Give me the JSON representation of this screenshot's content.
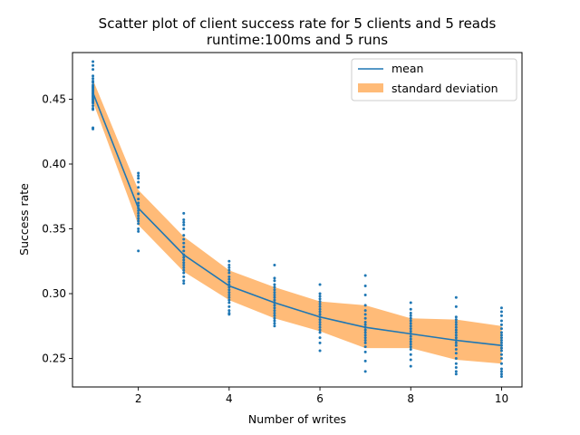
{
  "chart_data": {
    "type": "scatter",
    "title_line1": "Scatter plot of client success rate for 5 clients and 5 reads",
    "title_line2": "runtime:100ms and 5 runs",
    "xlabel": "Number of writes",
    "ylabel": "Success rate",
    "xlim": [
      0.55,
      10.45
    ],
    "ylim": [
      0.228,
      0.486
    ],
    "xticks": [
      2,
      4,
      6,
      8,
      10
    ],
    "yticks": [
      0.25,
      0.3,
      0.35,
      0.4,
      0.45
    ],
    "ytick_labels": [
      "0.25",
      "0.30",
      "0.35",
      "0.40",
      "0.45"
    ],
    "legend_placement": "top-right",
    "colors": {
      "mean": "#1f77b4",
      "std": "#ffbb78",
      "points": "#1f77b4"
    },
    "mean": {
      "name": "mean",
      "x": [
        1,
        2,
        3,
        4,
        5,
        6,
        7,
        8,
        9,
        10
      ],
      "y": [
        0.455,
        0.366,
        0.33,
        0.306,
        0.293,
        0.282,
        0.274,
        0.269,
        0.264,
        0.26
      ]
    },
    "std": {
      "name": "standard deviation",
      "lower": [
        0.448,
        0.353,
        0.317,
        0.295,
        0.281,
        0.271,
        0.258,
        0.258,
        0.249,
        0.246
      ],
      "upper": [
        0.465,
        0.38,
        0.344,
        0.318,
        0.305,
        0.294,
        0.291,
        0.281,
        0.28,
        0.275
      ]
    },
    "points": [
      {
        "x": 1,
        "y": [
          0.479,
          0.476,
          0.473,
          0.468,
          0.466,
          0.464,
          0.463,
          0.461,
          0.46,
          0.459,
          0.458,
          0.457,
          0.456,
          0.455,
          0.454,
          0.453,
          0.452,
          0.451,
          0.45,
          0.449,
          0.448,
          0.447,
          0.445,
          0.443,
          0.442,
          0.428,
          0.427
        ]
      },
      {
        "x": 2,
        "y": [
          0.393,
          0.391,
          0.389,
          0.386,
          0.382,
          0.377,
          0.373,
          0.37,
          0.368,
          0.366,
          0.364,
          0.362,
          0.36,
          0.358,
          0.356,
          0.354,
          0.35,
          0.348,
          0.333
        ]
      },
      {
        "x": 3,
        "y": [
          0.362,
          0.357,
          0.355,
          0.353,
          0.35,
          0.345,
          0.342,
          0.339,
          0.336,
          0.333,
          0.33,
          0.328,
          0.326,
          0.324,
          0.322,
          0.32,
          0.318,
          0.316,
          0.313,
          0.31,
          0.308
        ]
      },
      {
        "x": 4,
        "y": [
          0.325,
          0.322,
          0.32,
          0.318,
          0.316,
          0.313,
          0.311,
          0.309,
          0.307,
          0.305,
          0.303,
          0.301,
          0.299,
          0.297,
          0.295,
          0.293,
          0.29,
          0.287,
          0.285,
          0.284
        ]
      },
      {
        "x": 5,
        "y": [
          0.322,
          0.312,
          0.31,
          0.307,
          0.305,
          0.303,
          0.301,
          0.299,
          0.297,
          0.295,
          0.293,
          0.291,
          0.289,
          0.287,
          0.285,
          0.283,
          0.281,
          0.279,
          0.277,
          0.275
        ]
      },
      {
        "x": 6,
        "y": [
          0.307,
          0.3,
          0.298,
          0.296,
          0.294,
          0.292,
          0.29,
          0.288,
          0.286,
          0.284,
          0.282,
          0.28,
          0.278,
          0.276,
          0.274,
          0.272,
          0.27,
          0.266,
          0.262,
          0.256
        ]
      },
      {
        "x": 7,
        "y": [
          0.314,
          0.306,
          0.299,
          0.291,
          0.287,
          0.284,
          0.281,
          0.278,
          0.276,
          0.274,
          0.272,
          0.27,
          0.268,
          0.266,
          0.264,
          0.262,
          0.259,
          0.255,
          0.248,
          0.24
        ]
      },
      {
        "x": 8,
        "y": [
          0.293,
          0.288,
          0.285,
          0.283,
          0.281,
          0.279,
          0.277,
          0.275,
          0.273,
          0.271,
          0.269,
          0.267,
          0.265,
          0.263,
          0.261,
          0.259,
          0.257,
          0.253,
          0.249,
          0.244
        ]
      },
      {
        "x": 9,
        "y": [
          0.297,
          0.29,
          0.282,
          0.28,
          0.278,
          0.276,
          0.274,
          0.272,
          0.27,
          0.268,
          0.266,
          0.264,
          0.262,
          0.26,
          0.257,
          0.254,
          0.25,
          0.246,
          0.243,
          0.24,
          0.238
        ]
      },
      {
        "x": 10,
        "y": [
          0.289,
          0.286,
          0.283,
          0.279,
          0.276,
          0.273,
          0.27,
          0.268,
          0.266,
          0.264,
          0.262,
          0.26,
          0.258,
          0.256,
          0.253,
          0.25,
          0.246,
          0.242,
          0.24,
          0.238,
          0.236
        ]
      }
    ]
  }
}
